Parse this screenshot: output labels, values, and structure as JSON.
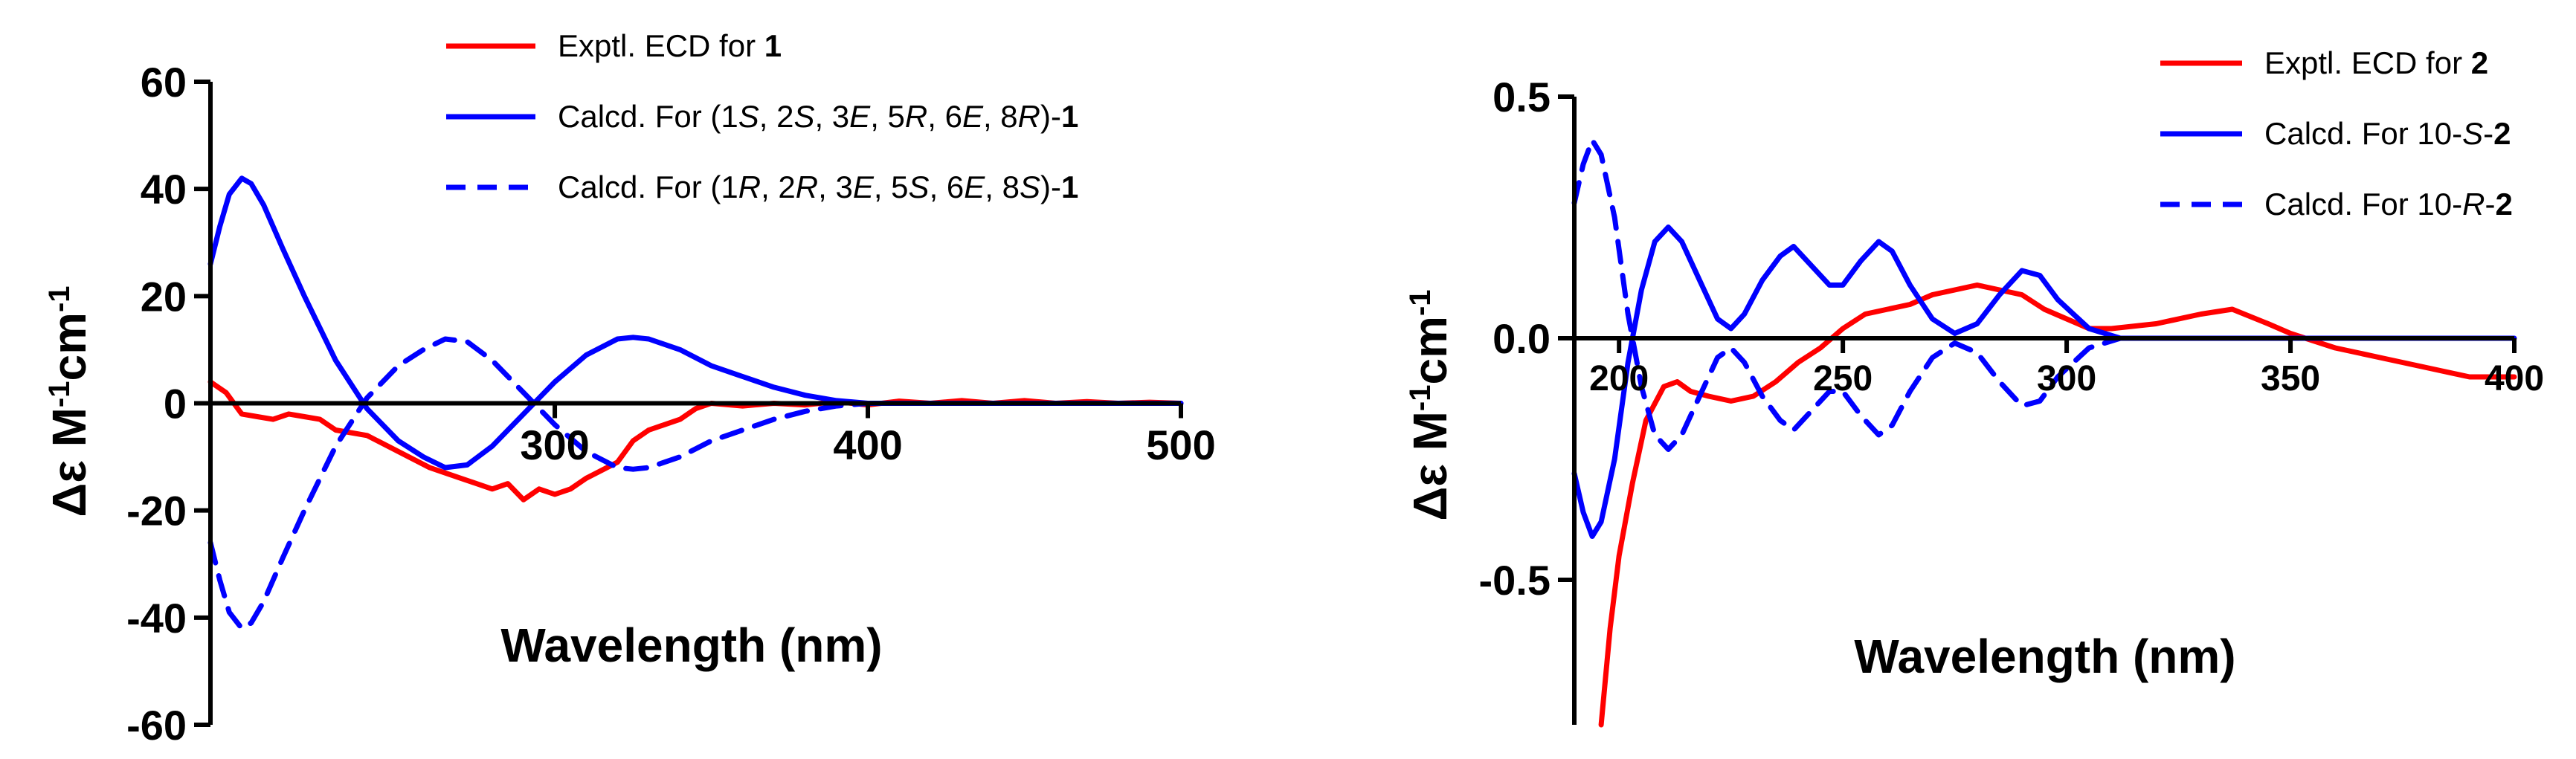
{
  "chart_data": [
    {
      "type": "line",
      "xlabel": "Wavelength (nm)",
      "ylabel": {
        "prefix": "Δε M",
        "sup1": "-1",
        "mid": "cm",
        "sup2": "-1"
      },
      "xlim": [
        190,
        500
      ],
      "ylim": [
        -60,
        60
      ],
      "x_ticks": [
        300,
        400,
        500
      ],
      "y_ticks": [
        -60,
        -40,
        -20,
        0,
        20,
        40,
        60
      ],
      "grid": false,
      "legend_position": "top-right",
      "series": [
        {
          "name": "Exptl. ECD for 1",
          "legend_parts": [
            {
              "t": "Exptl. ECD for "
            },
            {
              "t": "1",
              "s": "b"
            }
          ],
          "color": "#ff0000",
          "style": "solid",
          "points": [
            [
              190,
              4
            ],
            [
              195,
              2
            ],
            [
              200,
              -2
            ],
            [
              205,
              -2.5
            ],
            [
              210,
              -3
            ],
            [
              215,
              -2
            ],
            [
              220,
              -2.5
            ],
            [
              225,
              -3
            ],
            [
              230,
              -5
            ],
            [
              240,
              -6
            ],
            [
              250,
              -9
            ],
            [
              260,
              -12
            ],
            [
              270,
              -14
            ],
            [
              280,
              -16
            ],
            [
              285,
              -15
            ],
            [
              290,
              -18
            ],
            [
              295,
              -16
            ],
            [
              300,
              -17
            ],
            [
              305,
              -16
            ],
            [
              310,
              -14
            ],
            [
              320,
              -11
            ],
            [
              325,
              -7
            ],
            [
              330,
              -5
            ],
            [
              340,
              -3
            ],
            [
              345,
              -1
            ],
            [
              350,
              0
            ],
            [
              360,
              -0.5
            ],
            [
              370,
              0
            ],
            [
              380,
              -0.3
            ],
            [
              390,
              0.3
            ],
            [
              400,
              -0.3
            ],
            [
              410,
              0.4
            ],
            [
              420,
              0
            ],
            [
              430,
              0.5
            ],
            [
              440,
              0
            ],
            [
              450,
              0.5
            ],
            [
              460,
              0
            ],
            [
              470,
              0.3
            ],
            [
              480,
              0
            ],
            [
              490,
              0.2
            ],
            [
              500,
              0
            ]
          ]
        },
        {
          "name": "Calcd. For (1S, 2S, 3E, 5R, 6E, 8R)-1",
          "legend_parts": [
            {
              "t": "Calcd. For (1"
            },
            {
              "t": "S",
              "s": "i"
            },
            {
              "t": ", 2"
            },
            {
              "t": "S",
              "s": "i"
            },
            {
              "t": ", 3"
            },
            {
              "t": "E",
              "s": "i"
            },
            {
              "t": ", 5"
            },
            {
              "t": "R",
              "s": "i"
            },
            {
              "t": ", 6"
            },
            {
              "t": "E",
              "s": "i"
            },
            {
              "t": ", 8"
            },
            {
              "t": "R",
              "s": "i"
            },
            {
              "t": ")-"
            },
            {
              "t": "1",
              "s": "b"
            }
          ],
          "color": "#0000ff",
          "style": "solid",
          "points": [
            [
              190,
              26
            ],
            [
              193,
              33
            ],
            [
              196,
              39
            ],
            [
              200,
              42
            ],
            [
              203,
              41
            ],
            [
              207,
              37
            ],
            [
              213,
              29
            ],
            [
              220,
              20
            ],
            [
              230,
              8
            ],
            [
              240,
              -1
            ],
            [
              250,
              -7
            ],
            [
              258,
              -10
            ],
            [
              265,
              -12
            ],
            [
              272,
              -11.5
            ],
            [
              280,
              -8
            ],
            [
              290,
              -2
            ],
            [
              300,
              4
            ],
            [
              310,
              9
            ],
            [
              320,
              12
            ],
            [
              325,
              12.3
            ],
            [
              330,
              12
            ],
            [
              340,
              10
            ],
            [
              350,
              7
            ],
            [
              360,
              5
            ],
            [
              370,
              3
            ],
            [
              380,
              1.5
            ],
            [
              390,
              0.5
            ],
            [
              400,
              0
            ],
            [
              450,
              0
            ],
            [
              500,
              0
            ]
          ]
        },
        {
          "name": "Calcd. For (1R, 2R, 3E, 5S, 6E, 8S)-1",
          "legend_parts": [
            {
              "t": "Calcd. For (1"
            },
            {
              "t": "R",
              "s": "i"
            },
            {
              "t": ", 2"
            },
            {
              "t": "R",
              "s": "i"
            },
            {
              "t": ", 3"
            },
            {
              "t": "E",
              "s": "i"
            },
            {
              "t": ", 5"
            },
            {
              "t": "S",
              "s": "i"
            },
            {
              "t": ", 6"
            },
            {
              "t": "E",
              "s": "i"
            },
            {
              "t": ", 8"
            },
            {
              "t": "S",
              "s": "i"
            },
            {
              "t": ")-"
            },
            {
              "t": "1",
              "s": "b"
            }
          ],
          "color": "#0000ff",
          "style": "dashed",
          "points": [
            [
              190,
              -26
            ],
            [
              193,
              -33
            ],
            [
              196,
              -39
            ],
            [
              200,
              -42
            ],
            [
              203,
              -41
            ],
            [
              207,
              -37
            ],
            [
              213,
              -29
            ],
            [
              220,
              -20
            ],
            [
              230,
              -8
            ],
            [
              240,
              1
            ],
            [
              250,
              7
            ],
            [
              258,
              10
            ],
            [
              265,
              12
            ],
            [
              272,
              11.5
            ],
            [
              280,
              8
            ],
            [
              290,
              2
            ],
            [
              300,
              -4
            ],
            [
              310,
              -9
            ],
            [
              320,
              -12
            ],
            [
              325,
              -12.3
            ],
            [
              330,
              -12
            ],
            [
              340,
              -10
            ],
            [
              350,
              -7
            ],
            [
              360,
              -5
            ],
            [
              370,
              -3
            ],
            [
              380,
              -1.5
            ],
            [
              390,
              -0.5
            ],
            [
              400,
              0
            ],
            [
              450,
              0
            ],
            [
              500,
              0
            ]
          ]
        }
      ]
    },
    {
      "type": "line",
      "xlabel": "Wavelength (nm)",
      "ylabel": {
        "prefix": "Δε M",
        "sup1": "-1",
        "mid": "cm",
        "sup2": "-1"
      },
      "xlim": [
        190,
        400
      ],
      "ylim": [
        -0.8,
        0.5
      ],
      "x_ticks": [
        200,
        250,
        300,
        350,
        400
      ],
      "y_ticks": [
        -0.5,
        0.0,
        0.5
      ],
      "y_tick_labels": [
        "-0.5",
        "0.0",
        "0.5"
      ],
      "grid": false,
      "legend_position": "top-right",
      "series": [
        {
          "name": "Exptl. ECD for 2",
          "legend_parts": [
            {
              "t": "Exptl. ECD for "
            },
            {
              "t": "2",
              "s": "b"
            }
          ],
          "color": "#ff0000",
          "style": "solid",
          "points": [
            [
              196,
              -0.8
            ],
            [
              198,
              -0.6
            ],
            [
              200,
              -0.45
            ],
            [
              203,
              -0.3
            ],
            [
              206,
              -0.17
            ],
            [
              210,
              -0.1
            ],
            [
              213,
              -0.09
            ],
            [
              216,
              -0.11
            ],
            [
              220,
              -0.12
            ],
            [
              225,
              -0.13
            ],
            [
              230,
              -0.12
            ],
            [
              235,
              -0.09
            ],
            [
              240,
              -0.05
            ],
            [
              245,
              -0.02
            ],
            [
              250,
              0.02
            ],
            [
              255,
              0.05
            ],
            [
              260,
              0.06
            ],
            [
              265,
              0.07
            ],
            [
              270,
              0.09
            ],
            [
              275,
              0.1
            ],
            [
              280,
              0.11
            ],
            [
              285,
              0.1
            ],
            [
              290,
              0.09
            ],
            [
              295,
              0.06
            ],
            [
              300,
              0.04
            ],
            [
              305,
              0.02
            ],
            [
              310,
              0.02
            ],
            [
              320,
              0.03
            ],
            [
              330,
              0.05
            ],
            [
              337,
              0.06
            ],
            [
              345,
              0.03
            ],
            [
              350,
              0.01
            ],
            [
              360,
              -0.02
            ],
            [
              370,
              -0.04
            ],
            [
              380,
              -0.06
            ],
            [
              390,
              -0.08
            ],
            [
              400,
              -0.08
            ]
          ]
        },
        {
          "name": "Calcd. For 10-S-2",
          "legend_parts": [
            {
              "t": "Calcd. For 10-"
            },
            {
              "t": "S",
              "s": "i"
            },
            {
              "t": "-"
            },
            {
              "t": "2",
              "s": "b"
            }
          ],
          "color": "#0000ff",
          "style": "solid",
          "points": [
            [
              190,
              -0.28
            ],
            [
              192,
              -0.36
            ],
            [
              194,
              -0.41
            ],
            [
              196,
              -0.38
            ],
            [
              199,
              -0.25
            ],
            [
              202,
              -0.05
            ],
            [
              205,
              0.1
            ],
            [
              208,
              0.2
            ],
            [
              211,
              0.23
            ],
            [
              214,
              0.2
            ],
            [
              218,
              0.12
            ],
            [
              222,
              0.04
            ],
            [
              225,
              0.02
            ],
            [
              228,
              0.05
            ],
            [
              232,
              0.12
            ],
            [
              236,
              0.17
            ],
            [
              239,
              0.19
            ],
            [
              243,
              0.15
            ],
            [
              247,
              0.11
            ],
            [
              250,
              0.11
            ],
            [
              254,
              0.16
            ],
            [
              258,
              0.2
            ],
            [
              261,
              0.18
            ],
            [
              265,
              0.11
            ],
            [
              270,
              0.04
            ],
            [
              275,
              0.01
            ],
            [
              280,
              0.03
            ],
            [
              285,
              0.09
            ],
            [
              290,
              0.14
            ],
            [
              294,
              0.13
            ],
            [
              298,
              0.08
            ],
            [
              305,
              0.02
            ],
            [
              312,
              0
            ],
            [
              320,
              0
            ],
            [
              400,
              0
            ]
          ]
        },
        {
          "name": "Calcd. For 10-R-2",
          "legend_parts": [
            {
              "t": "Calcd. For 10-"
            },
            {
              "t": "R",
              "s": "i"
            },
            {
              "t": "-"
            },
            {
              "t": "2",
              "s": "b"
            }
          ],
          "color": "#0000ff",
          "style": "dashed",
          "points": [
            [
              190,
              0.28
            ],
            [
              192,
              0.36
            ],
            [
              194,
              0.41
            ],
            [
              196,
              0.38
            ],
            [
              199,
              0.25
            ],
            [
              202,
              0.05
            ],
            [
              205,
              -0.1
            ],
            [
              208,
              -0.2
            ],
            [
              211,
              -0.23
            ],
            [
              214,
              -0.2
            ],
            [
              218,
              -0.12
            ],
            [
              222,
              -0.04
            ],
            [
              225,
              -0.02
            ],
            [
              228,
              -0.05
            ],
            [
              232,
              -0.12
            ],
            [
              236,
              -0.17
            ],
            [
              239,
              -0.19
            ],
            [
              243,
              -0.15
            ],
            [
              247,
              -0.11
            ],
            [
              250,
              -0.11
            ],
            [
              254,
              -0.16
            ],
            [
              258,
              -0.2
            ],
            [
              261,
              -0.18
            ],
            [
              265,
              -0.11
            ],
            [
              270,
              -0.04
            ],
            [
              275,
              -0.01
            ],
            [
              280,
              -0.03
            ],
            [
              285,
              -0.09
            ],
            [
              290,
              -0.14
            ],
            [
              294,
              -0.13
            ],
            [
              298,
              -0.08
            ],
            [
              305,
              -0.02
            ],
            [
              312,
              0
            ],
            [
              320,
              0
            ],
            [
              400,
              0
            ]
          ]
        }
      ]
    }
  ]
}
